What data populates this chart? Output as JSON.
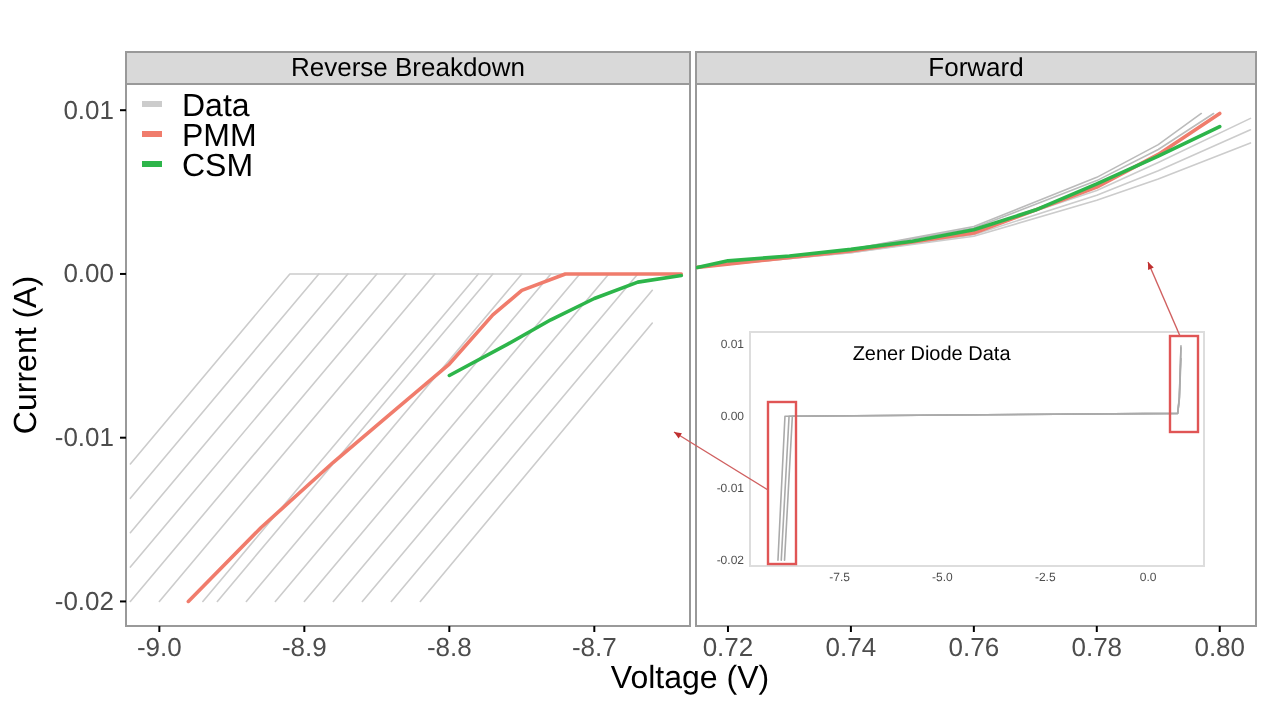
{
  "chart_data": [
    {
      "type": "line",
      "title": "Reverse Breakdown",
      "xlabel": "Voltage (V)",
      "ylabel": "Current (A)",
      "xlim": [
        -9.023,
        -8.634
      ],
      "ylim": [
        -0.0215,
        0.0116
      ],
      "xticks": [
        {
          "value": -9.0,
          "label": "-9.0"
        },
        -8.9,
        -8.8,
        -8.7
      ],
      "yticks": [
        {
          "value": 0.01,
          "label": "0.01"
        },
        {
          "value": 0,
          "label": "0.00"
        },
        {
          "value": -0.01,
          "label": "-0.01"
        },
        {
          "value": -0.02,
          "label": "-0.02"
        }
      ],
      "grid": false,
      "legend": "top left",
      "series": [
        {
          "name": "Data",
          "color": "#cccccc",
          "x": [
            -9.02,
            -8.91,
            -8.64
          ],
          "values": [
            -0.0116,
            0,
            0
          ]
        },
        {
          "color": "#cccccc",
          "x": [
            -9.02,
            -8.89
          ],
          "values": [
            -0.0137,
            0
          ]
        },
        {
          "color": "#cccccc",
          "x": [
            -9.02,
            -8.87
          ],
          "values": [
            -0.0158,
            0
          ]
        },
        {
          "color": "#cccccc",
          "x": [
            -9.02,
            -8.85
          ],
          "values": [
            -0.0179,
            0
          ]
        },
        {
          "color": "#cccccc",
          "x": [
            -9.02,
            -8.83
          ],
          "values": [
            -0.02,
            0
          ]
        },
        {
          "color": "#cccccc",
          "x": [
            -9.0,
            -8.81
          ],
          "values": [
            -0.02,
            0
          ]
        },
        {
          "color": "#cccccc",
          "x": [
            -8.97,
            -8.78
          ],
          "values": [
            -0.02,
            0
          ]
        },
        {
          "color": "#cccccc",
          "x": [
            -8.96,
            -8.77
          ],
          "values": [
            -0.02,
            0
          ]
        },
        {
          "color": "#cccccc",
          "x": [
            -8.94,
            -8.75
          ],
          "values": [
            -0.02,
            0
          ]
        },
        {
          "color": "#cccccc",
          "x": [
            -8.92,
            -8.73
          ],
          "values": [
            -0.02,
            0
          ]
        },
        {
          "color": "#cccccc",
          "x": [
            -8.9,
            -8.71
          ],
          "values": [
            -0.02,
            0
          ]
        },
        {
          "color": "#cccccc",
          "x": [
            -8.88,
            -8.69
          ],
          "values": [
            -0.02,
            0
          ]
        },
        {
          "color": "#cccccc",
          "x": [
            -8.86,
            -8.67
          ],
          "values": [
            -0.02,
            0
          ]
        },
        {
          "color": "#cccccc",
          "x": [
            -8.84,
            -8.66
          ],
          "values": [
            -0.02,
            -0.001
          ]
        },
        {
          "color": "#cccccc",
          "x": [
            -8.82,
            -8.66
          ],
          "values": [
            -0.02,
            -0.003
          ]
        },
        {
          "name": "PMM",
          "color": "#f07c6c",
          "x": [
            -8.98,
            -8.93,
            -8.88,
            -8.84,
            -8.8,
            -8.77,
            -8.75,
            -8.72,
            -8.64
          ],
          "values": [
            -0.02,
            -0.0155,
            -0.0115,
            -0.0085,
            -0.0055,
            -0.0025,
            -0.001,
            0,
            0
          ]
        },
        {
          "name": "CSM",
          "color": "#2db54a",
          "x": [
            -8.8,
            -8.76,
            -8.73,
            -8.7,
            -8.67,
            -8.64
          ],
          "values": [
            -0.0062,
            -0.0043,
            -0.0028,
            -0.0015,
            -0.0005,
            -0.0001
          ]
        }
      ]
    },
    {
      "type": "line",
      "title": "Forward",
      "xlim": [
        0.7148,
        0.8059
      ],
      "ylim": [
        -0.0215,
        0.0116
      ],
      "xticks": [
        0.72,
        0.74,
        0.76,
        0.78,
        {
          "value": 0.8,
          "label": "0.80"
        }
      ],
      "tick_labels": "x",
      "grid": false,
      "series": [
        {
          "color": "#cccccc",
          "x": [
            0.715,
            0.74,
            0.76,
            0.78,
            0.79,
            0.805
          ],
          "values": [
            0.0004,
            0.0013,
            0.0023,
            0.0045,
            0.0058,
            0.008
          ]
        },
        {
          "color": "#cccccc",
          "x": [
            0.715,
            0.74,
            0.76,
            0.78,
            0.79,
            0.805
          ],
          "values": [
            0.0004,
            0.0013,
            0.0024,
            0.0048,
            0.0063,
            0.0088
          ]
        },
        {
          "color": "#cccccc",
          "x": [
            0.715,
            0.74,
            0.76,
            0.78,
            0.79,
            0.805
          ],
          "values": [
            0.0004,
            0.0014,
            0.0026,
            0.0051,
            0.0068,
            0.0095
          ]
        },
        {
          "color": "#bbbbbb",
          "x": [
            0.715,
            0.74,
            0.76,
            0.78,
            0.79,
            0.799
          ],
          "values": [
            0.0004,
            0.0015,
            0.0028,
            0.0057,
            0.0076,
            0.0098
          ]
        },
        {
          "color": "#bbbbbb",
          "x": [
            0.715,
            0.74,
            0.76,
            0.78,
            0.79,
            0.797
          ],
          "values": [
            0.0004,
            0.0015,
            0.0029,
            0.0059,
            0.0079,
            0.0098
          ]
        },
        {
          "color": "#f07c6c",
          "x": [
            0.715,
            0.74,
            0.76,
            0.78,
            0.79,
            0.8
          ],
          "values": [
            0.0004,
            0.0014,
            0.0025,
            0.0053,
            0.0073,
            0.0098
          ]
        },
        {
          "color": "#2db54a",
          "x": [
            0.715,
            0.72,
            0.73,
            0.74,
            0.75,
            0.76,
            0.77,
            0.78,
            0.79,
            0.8
          ],
          "values": [
            0.0004,
            0.0008,
            0.0011,
            0.0015,
            0.002,
            0.0027,
            0.0039,
            0.0055,
            0.0072,
            0.009
          ]
        }
      ]
    },
    {
      "type": "line",
      "title": "Zener Diode Data",
      "xlim": [
        -9.68,
        1.36
      ],
      "ylim": [
        -0.0208,
        0.0117
      ],
      "xticks": [
        -7.5,
        {
          "value": -5.0,
          "label": "-5.0"
        },
        -2.5,
        {
          "value": 0.0,
          "label": "0.0"
        }
      ],
      "yticks": [
        {
          "value": 0.01,
          "label": "0.01"
        },
        {
          "value": 0,
          "label": "0.00"
        },
        {
          "value": -0.01,
          "label": "-0.01"
        },
        {
          "value": -0.02,
          "label": "-0.02"
        }
      ],
      "grid": false,
      "series": [
        {
          "color": "#aaaaaa",
          "x": [
            -9.0,
            -8.83,
            0.72,
            0.76,
            0.8
          ],
          "values": [
            -0.02,
            0,
            0.0004,
            0.0027,
            0.0098
          ]
        },
        {
          "color": "#aaaaaa",
          "x": [
            -8.92,
            -8.73,
            0.72,
            0.76,
            0.8
          ],
          "values": [
            -0.02,
            0,
            0.0004,
            0.0025,
            0.0095
          ]
        },
        {
          "color": "#aaaaaa",
          "x": [
            -8.84,
            -8.65,
            0.72,
            0.76,
            0.8
          ],
          "values": [
            -0.02,
            0,
            0.0004,
            0.0023,
            0.008
          ]
        }
      ]
    }
  ]
}
